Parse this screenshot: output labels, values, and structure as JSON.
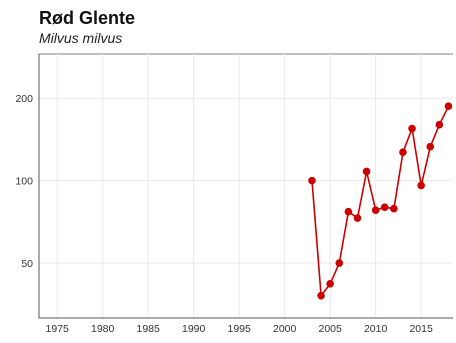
{
  "chart_data": {
    "type": "line",
    "title": "Rød Glente",
    "subtitle": "Milvus milvus",
    "xlabel": "",
    "ylabel": "",
    "x_ticks": [
      "1975",
      "1980",
      "1985",
      "1990",
      "1995",
      "2000",
      "2005",
      "2010",
      "2015"
    ],
    "y_ticks": [
      "50",
      "100",
      "200"
    ],
    "y_scale": "log",
    "xlim": [
      1973,
      2018.5
    ],
    "ylim": [
      31.5,
      290
    ],
    "grid": true,
    "series": [
      {
        "x": [
          2003,
          2004,
          2005,
          2006,
          2007,
          2008,
          2009,
          2010,
          2011,
          2012,
          2013,
          2014,
          2015,
          2016,
          2017,
          2018
        ],
        "values": [
          100,
          38,
          42,
          50,
          77,
          73,
          108,
          78,
          80,
          79,
          127,
          155,
          96,
          133,
          160,
          187
        ],
        "color": "#cc0000"
      }
    ]
  }
}
